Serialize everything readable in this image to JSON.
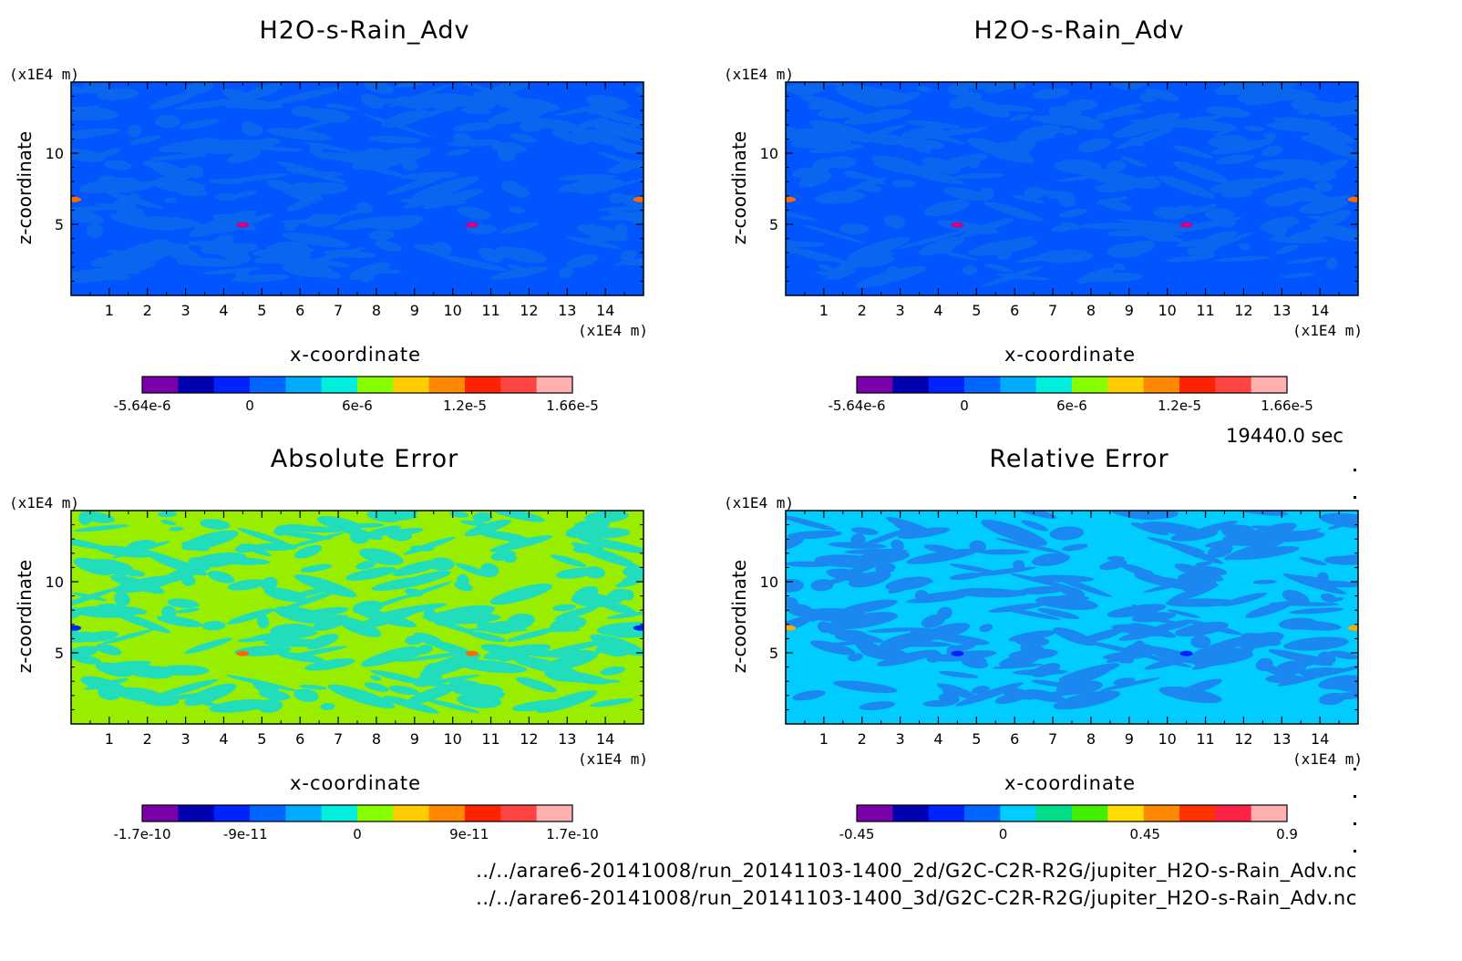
{
  "chart_data": [
    {
      "type": "heatmap",
      "title": "H2O-s-Rain_Adv",
      "xlabel": "x-coordinate",
      "ylabel": "z-coordinate",
      "x_unit": "(x1E4 m)",
      "z_unit": "(x1E4 m)",
      "xlim": [
        0,
        15
      ],
      "ylim": [
        0,
        15
      ],
      "x_ticks": [
        1,
        2,
        3,
        4,
        5,
        6,
        7,
        8,
        9,
        10,
        11,
        12,
        13,
        14
      ],
      "y_ticks": [
        5,
        10
      ],
      "base_color": "#0055ff",
      "pattern_color": "#0a66ee",
      "accent_colors": [
        "#ff6a00",
        "#cc0088"
      ],
      "colorbar": {
        "colors": [
          "#7a00a8",
          "#0000b0",
          "#0022ff",
          "#0066ff",
          "#00aaff",
          "#00eedd",
          "#88ff00",
          "#ffcc00",
          "#ff8800",
          "#ff2200",
          "#ff4444",
          "#ffb0b0"
        ],
        "tick_labels": [
          "-5.64e-6",
          "0",
          "6e-6",
          "1.2e-5",
          "1.66e-5"
        ],
        "tick_fracs": [
          0,
          0.25,
          0.5,
          0.75,
          1.0
        ]
      }
    },
    {
      "type": "heatmap",
      "title": "H2O-s-Rain_Adv",
      "xlabel": "x-coordinate",
      "ylabel": "z-coordinate",
      "x_unit": "(x1E4 m)",
      "z_unit": "(x1E4 m)",
      "xlim": [
        0,
        15
      ],
      "ylim": [
        0,
        15
      ],
      "x_ticks": [
        1,
        2,
        3,
        4,
        5,
        6,
        7,
        8,
        9,
        10,
        11,
        12,
        13,
        14
      ],
      "y_ticks": [
        5,
        10
      ],
      "base_color": "#0055ff",
      "pattern_color": "#0a66ee",
      "accent_colors": [
        "#ff6a00",
        "#cc0088"
      ],
      "colorbar": {
        "colors": [
          "#7a00a8",
          "#0000b0",
          "#0022ff",
          "#0066ff",
          "#00aaff",
          "#00eedd",
          "#88ff00",
          "#ffcc00",
          "#ff8800",
          "#ff2200",
          "#ff4444",
          "#ffb0b0"
        ],
        "tick_labels": [
          "-5.64e-6",
          "0",
          "6e-6",
          "1.2e-5",
          "1.66e-5"
        ],
        "tick_fracs": [
          0,
          0.25,
          0.5,
          0.75,
          1.0
        ]
      }
    },
    {
      "type": "heatmap",
      "title": "Absolute Error",
      "xlabel": "x-coordinate",
      "ylabel": "z-coordinate",
      "x_unit": "(x1E4 m)",
      "z_unit": "(x1E4 m)",
      "xlim": [
        0,
        15
      ],
      "ylim": [
        0,
        15
      ],
      "x_ticks": [
        1,
        2,
        3,
        4,
        5,
        6,
        7,
        8,
        9,
        10,
        11,
        12,
        13,
        14
      ],
      "y_ticks": [
        5,
        10
      ],
      "base_color": "#99ee00",
      "pattern_color": "#22ddbb",
      "accent_colors": [
        "#0022ff",
        "#ff6a00"
      ],
      "colorbar": {
        "colors": [
          "#7a00a8",
          "#0000b0",
          "#0022ff",
          "#0066ff",
          "#00aaff",
          "#00eedd",
          "#88ff00",
          "#ffcc00",
          "#ff8800",
          "#ff2200",
          "#ff4444",
          "#ffb0b0"
        ],
        "tick_labels": [
          "-1.7e-10",
          "-9e-11",
          "0",
          "9e-11",
          "1.7e-10"
        ],
        "tick_fracs": [
          0,
          0.24,
          0.5,
          0.76,
          1.0
        ]
      }
    },
    {
      "type": "heatmap",
      "title": "Relative Error",
      "xlabel": "x-coordinate",
      "ylabel": "z-coordinate",
      "x_unit": "(x1E4 m)",
      "z_unit": "(x1E4 m)",
      "xlim": [
        0,
        15
      ],
      "ylim": [
        0,
        15
      ],
      "x_ticks": [
        1,
        2,
        3,
        4,
        5,
        6,
        7,
        8,
        9,
        10,
        11,
        12,
        13,
        14
      ],
      "y_ticks": [
        5,
        10
      ],
      "base_color": "#00ccff",
      "pattern_color": "#1a88f0",
      "accent_colors": [
        "#ffaa00",
        "#0022ff"
      ],
      "colorbar": {
        "colors": [
          "#7a00a8",
          "#0000b0",
          "#0022ff",
          "#0066ff",
          "#00ccff",
          "#00dd88",
          "#44ee00",
          "#ffdd00",
          "#ff8800",
          "#ff3300",
          "#ff2244",
          "#ffb0b0"
        ],
        "tick_labels": [
          "-0.45",
          "0",
          "0.45",
          "0.9"
        ],
        "tick_fracs": [
          0,
          0.34,
          0.67,
          1.0
        ]
      }
    }
  ],
  "time_label": "19440.0 sec",
  "footer": [
    "../../arare6-20141008/run_20141103-1400_2d/G2C-C2R-R2G/jupiter_H2O-s-Rain_Adv.nc",
    "../../arare6-20141008/run_20141103-1400_3d/G2C-C2R-R2G/jupiter_H2O-s-Rain_Adv.nc"
  ]
}
